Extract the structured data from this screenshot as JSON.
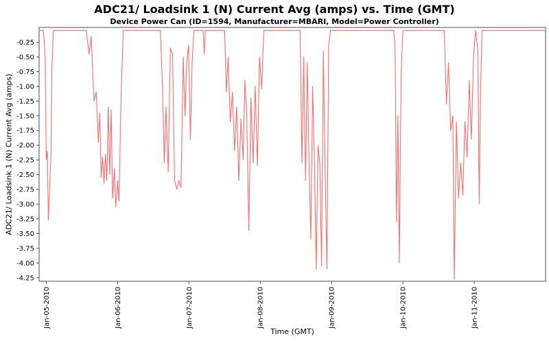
{
  "chart_data": {
    "type": "line",
    "title": "ADC21/ Loadsink 1 (N) Current Avg (amps) vs. Time (GMT)",
    "subtitle": "Device Power Can (ID=1594, Manufacturer=MBARI, Model=Power Controller)",
    "xlabel": "Time (GMT)",
    "ylabel": "ADC21/ Loadsink 1 (N) Current Avg (amps)",
    "grid": false,
    "legend": "none",
    "line_color": "#ff6b6b",
    "frame_color": "#4d4d4d",
    "x_domain": [
      4.9,
      12.0
    ],
    "y_domain": [
      -4.31,
      0.0
    ],
    "x_ticks": [
      {
        "label": "Jan-05-2010",
        "day": 5
      },
      {
        "label": "Jan-06-2010",
        "day": 6
      },
      {
        "label": "Jan-07-2010",
        "day": 7
      },
      {
        "label": "Jan-08-2010",
        "day": 8
      },
      {
        "label": "Jan-09-2010",
        "day": 9
      },
      {
        "label": "Jan-10-2010",
        "day": 10
      },
      {
        "label": "Jan-11-2010",
        "day": 11
      }
    ],
    "y_ticks": [
      "-0.25",
      "-0.50",
      "-0.75",
      "-1.00",
      "-1.25",
      "-1.50",
      "-1.75",
      "-2.00",
      "-2.25",
      "-2.50",
      "-2.75",
      "-3.00",
      "-3.25",
      "-3.50",
      "-3.75",
      "-4.00",
      "-4.25"
    ],
    "points": [
      [
        4.9,
        -0.05
      ],
      [
        4.96,
        -0.05
      ],
      [
        4.985,
        -0.45
      ],
      [
        5.0,
        -2.25
      ],
      [
        5.015,
        -2.1
      ],
      [
        5.03,
        -3.27
      ],
      [
        5.05,
        -2.65
      ],
      [
        5.065,
        -2.2
      ],
      [
        5.08,
        -0.7
      ],
      [
        5.1,
        -0.05
      ],
      [
        5.56,
        -0.05
      ],
      [
        5.6,
        -0.45
      ],
      [
        5.63,
        -0.15
      ],
      [
        5.67,
        -1.25
      ],
      [
        5.7,
        -1.1
      ],
      [
        5.73,
        -1.95
      ],
      [
        5.75,
        -1.45
      ],
      [
        5.77,
        -2.55
      ],
      [
        5.79,
        -2.2
      ],
      [
        5.81,
        -2.65
      ],
      [
        5.83,
        -2.15
      ],
      [
        5.85,
        -2.6
      ],
      [
        5.87,
        -1.35
      ],
      [
        5.89,
        -2.5
      ],
      [
        5.91,
        -1.4
      ],
      [
        5.93,
        -2.9
      ],
      [
        5.955,
        -2.4
      ],
      [
        5.975,
        -3.05
      ],
      [
        6.0,
        -2.6
      ],
      [
        6.02,
        -2.95
      ],
      [
        6.05,
        -1.15
      ],
      [
        6.08,
        -0.05
      ],
      [
        6.6,
        -0.05
      ],
      [
        6.63,
        -1.0
      ],
      [
        6.655,
        -2.3
      ],
      [
        6.68,
        -1.35
      ],
      [
        6.71,
        -2.45
      ],
      [
        6.74,
        -0.35
      ],
      [
        6.77,
        -0.45
      ],
      [
        6.8,
        -2.6
      ],
      [
        6.83,
        -2.75
      ],
      [
        6.86,
        -2.6
      ],
      [
        6.89,
        -2.72
      ],
      [
        6.92,
        -0.5
      ],
      [
        6.945,
        -1.5
      ],
      [
        6.97,
        -0.55
      ],
      [
        6.995,
        -0.3
      ],
      [
        7.02,
        -1.9
      ],
      [
        7.045,
        -0.6
      ],
      [
        7.07,
        -0.05
      ],
      [
        7.2,
        -0.05
      ],
      [
        7.215,
        -0.45
      ],
      [
        7.23,
        -0.05
      ],
      [
        7.5,
        -0.05
      ],
      [
        7.525,
        -1.1
      ],
      [
        7.55,
        -0.5
      ],
      [
        7.58,
        -1.6
      ],
      [
        7.61,
        -1.1
      ],
      [
        7.64,
        -2.1
      ],
      [
        7.67,
        -1.35
      ],
      [
        7.7,
        -2.6
      ],
      [
        7.73,
        -1.55
      ],
      [
        7.76,
        -2.25
      ],
      [
        7.785,
        -0.9
      ],
      [
        7.81,
        -1.45
      ],
      [
        7.84,
        -3.45
      ],
      [
        7.87,
        -1.2
      ],
      [
        7.9,
        -2.3
      ],
      [
        7.93,
        -1.0
      ],
      [
        7.96,
        -2.35
      ],
      [
        7.99,
        -0.5
      ],
      [
        8.02,
        -1.05
      ],
      [
        8.05,
        -0.05
      ],
      [
        8.56,
        -0.05
      ],
      [
        8.585,
        -2.3
      ],
      [
        8.61,
        -0.5
      ],
      [
        8.635,
        -2.6
      ],
      [
        8.66,
        -0.6
      ],
      [
        8.685,
        -2.35
      ],
      [
        8.71,
        -3.6
      ],
      [
        8.735,
        -1.0
      ],
      [
        8.76,
        -2.3
      ],
      [
        8.785,
        -4.1
      ],
      [
        8.81,
        -2.0
      ],
      [
        8.835,
        -2.3
      ],
      [
        8.86,
        -4.05
      ],
      [
        8.885,
        -0.4
      ],
      [
        8.91,
        -2.4
      ],
      [
        8.935,
        -4.1
      ],
      [
        8.96,
        -0.3
      ],
      [
        8.985,
        -0.05
      ],
      [
        9.87,
        -0.05
      ],
      [
        9.89,
        -0.3
      ],
      [
        9.91,
        -3.3
      ],
      [
        9.93,
        -1.5
      ],
      [
        9.95,
        -4.0
      ],
      [
        9.975,
        -0.8
      ],
      [
        10.0,
        -0.05
      ],
      [
        10.58,
        -0.05
      ],
      [
        10.61,
        -1.3
      ],
      [
        10.64,
        -0.6
      ],
      [
        10.67,
        -1.75
      ],
      [
        10.7,
        -1.5
      ],
      [
        10.72,
        -4.28
      ],
      [
        10.75,
        -1.6
      ],
      [
        10.78,
        -2.9
      ],
      [
        10.81,
        -2.3
      ],
      [
        10.84,
        -2.85
      ],
      [
        10.87,
        -1.6
      ],
      [
        10.9,
        -2.2
      ],
      [
        10.93,
        -0.9
      ],
      [
        10.96,
        -1.9
      ],
      [
        10.99,
        -0.5
      ],
      [
        11.02,
        -0.05
      ],
      [
        11.05,
        -0.4
      ],
      [
        11.07,
        -3.0
      ],
      [
        11.09,
        -1.0
      ],
      [
        11.11,
        -0.05
      ],
      [
        12.0,
        -0.05
      ]
    ]
  }
}
